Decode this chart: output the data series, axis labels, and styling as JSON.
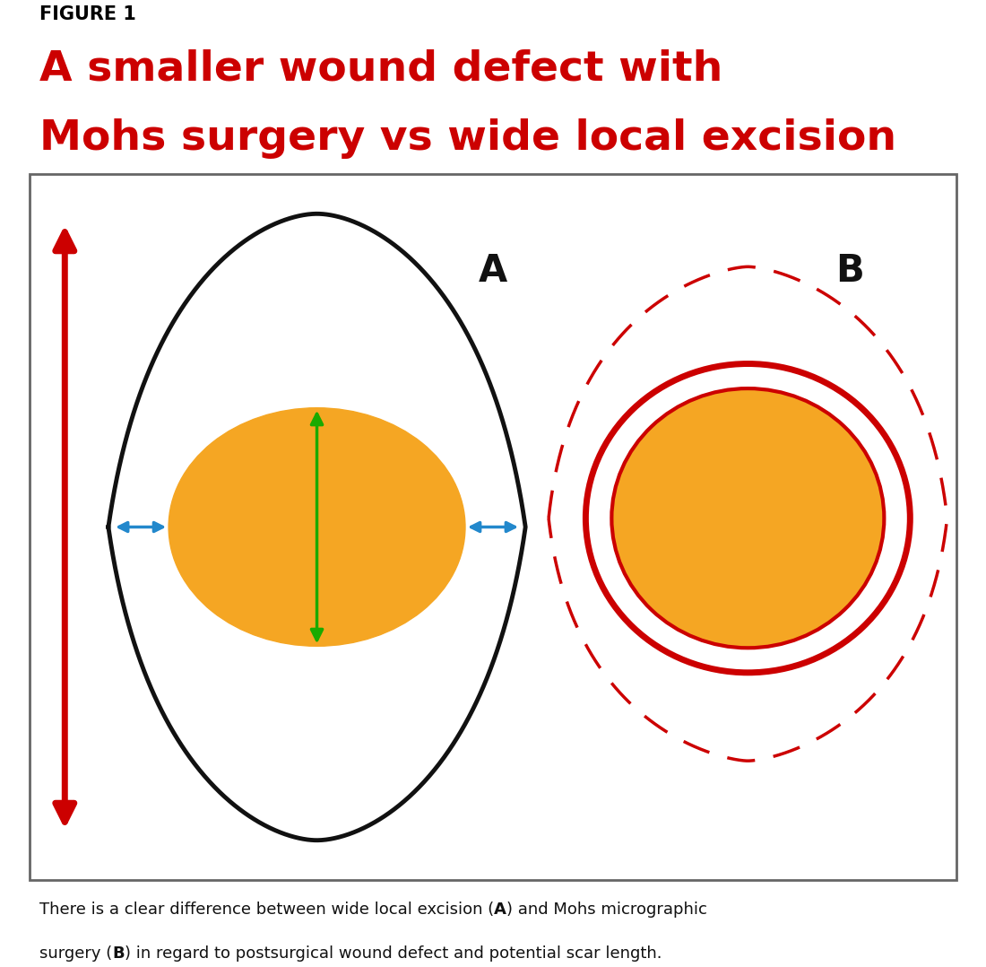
{
  "figure_label": "FIGURE 1",
  "title_line1": "A smaller wound defect with",
  "title_line2": "Mohs surgery vs wide local excision",
  "title_color": "#cc0000",
  "label_color": "#000000",
  "bg_color": "#e8e4dc",
  "orange_color": "#f5a623",
  "red_color": "#cc0000",
  "green_color": "#1aaa00",
  "blue_color": "#2288cc",
  "black_color": "#111111",
  "white_color": "#ffffff",
  "caption_line1_parts": [
    [
      "There is a clear difference between wide local excision (",
      false
    ],
    [
      "A",
      true
    ],
    [
      ") and Mohs micrographic",
      false
    ]
  ],
  "caption_line2_parts": [
    [
      "surgery (",
      false
    ],
    [
      "B",
      true
    ],
    [
      ") in regard to postsurgical wound defect and potential scar length.",
      false
    ]
  ]
}
